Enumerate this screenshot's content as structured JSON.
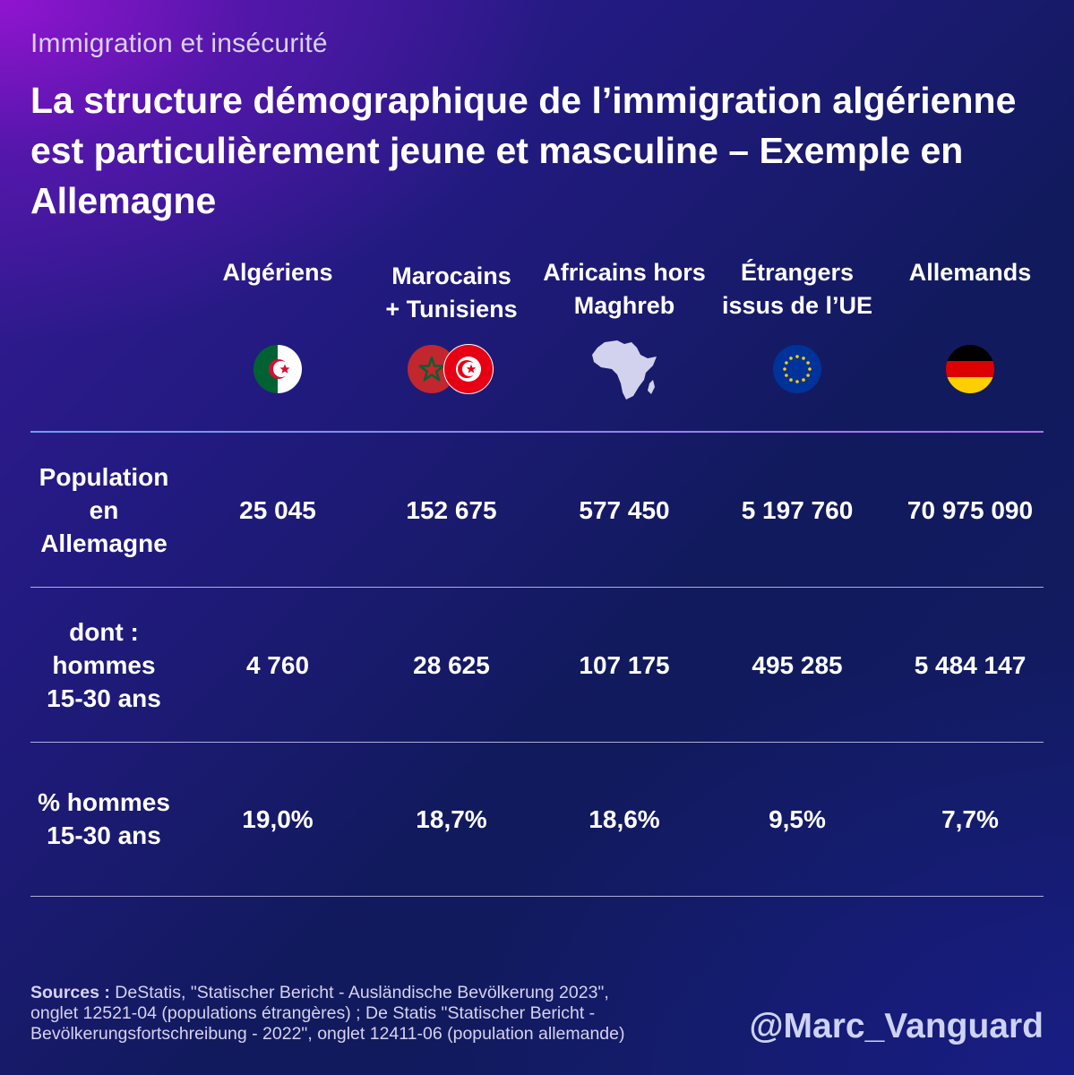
{
  "kicker": "Immigration et insécurité",
  "headline": "La structure démographique de l’immigration algérienne est particulièrement jeune et masculine – Exemple en Allemagne",
  "columns": [
    {
      "label_l1": "Algériens",
      "label_l2": "",
      "icon": "algeria-flag-icon"
    },
    {
      "label_l1": "Marocains",
      "label_l2": "+ Tunisiens",
      "icon": "morocco-tunisia-flags-icon"
    },
    {
      "label_l1": "Africains hors",
      "label_l2": "Maghreb",
      "icon": "africa-map-icon"
    },
    {
      "label_l1": "Étrangers",
      "label_l2": "issus de l’UE",
      "icon": "eu-flag-icon"
    },
    {
      "label_l1": "Allemands",
      "label_l2": "",
      "icon": "germany-flag-icon"
    }
  ],
  "rows": [
    {
      "label_lines": [
        "Population",
        "en",
        "Allemagne"
      ],
      "values": [
        "25 045",
        "152 675",
        "577 450",
        "5 197 760",
        "70 975 090"
      ]
    },
    {
      "label_lines": [
        "dont :",
        "hommes",
        "15-30 ans"
      ],
      "values": [
        "4 760",
        "28 625",
        "107 175",
        "495 285",
        "5 484 147"
      ]
    },
    {
      "label_lines": [
        "% hommes",
        "15-30 ans"
      ],
      "values": [
        "19,0%",
        "18,7%",
        "18,6%",
        "9,5%",
        "7,7%"
      ]
    }
  ],
  "sources": {
    "lead": "Sources : ",
    "line1": "DeStatis, \"Statischer Bericht - Ausländische Bevölkerung 2023\",",
    "line2": "onglet 12521-04 (populations étrangères) ; De Statis \"Statischer Bericht -",
    "line3": "Bevölkerungsfortschreibung - 2022\", onglet 12411-06 (population allemande)"
  },
  "handle": "@Marc_Vanguard",
  "colors": {
    "algeria_green": "#006233",
    "algeria_red": "#d21034",
    "morocco_red": "#c1272d",
    "morocco_green": "#006233",
    "tunisia_red": "#e70013",
    "eu_blue": "#003399",
    "eu_gold": "#ffcc00",
    "germany_black": "#000000",
    "germany_red": "#dd0000",
    "germany_gold": "#ffce00",
    "africa_fill": "#d3d2ee"
  }
}
